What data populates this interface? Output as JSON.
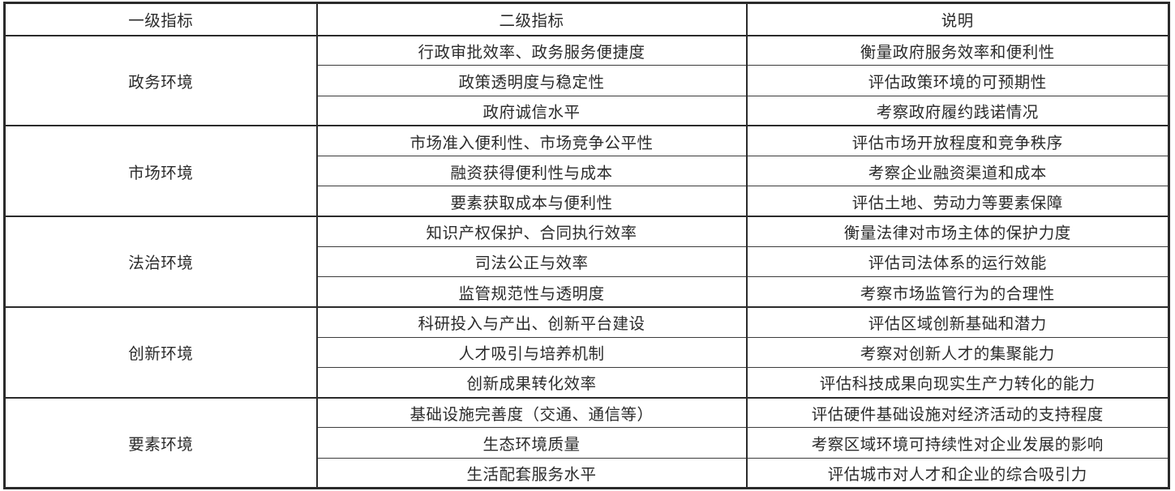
{
  "table": {
    "headers": [
      "一级指标",
      "二级指标",
      "说明"
    ],
    "groups": [
      {
        "level1": "政务环境",
        "rows": [
          {
            "indicator": "行政审批效率、政务服务便捷度",
            "description": "衡量政府服务效率和便利性"
          },
          {
            "indicator": "政策透明度与稳定性",
            "description": "评估政策环境的可预期性"
          },
          {
            "indicator": "政府诚信水平",
            "description": "考察政府履约践诺情况"
          }
        ]
      },
      {
        "level1": "市场环境",
        "rows": [
          {
            "indicator": "市场准入便利性、市场竞争公平性",
            "description": "评估市场开放程度和竞争秩序"
          },
          {
            "indicator": "融资获得便利性与成本",
            "description": "考察企业融资渠道和成本"
          },
          {
            "indicator": "要素获取成本与便利性",
            "description": "评估土地、劳动力等要素保障"
          }
        ]
      },
      {
        "level1": "法治环境",
        "rows": [
          {
            "indicator": "知识产权保护、合同执行效率",
            "description": "衡量法律对市场主体的保护力度"
          },
          {
            "indicator": "司法公正与效率",
            "description": "评估司法体系的运行效能"
          },
          {
            "indicator": "监管规范性与透明度",
            "description": "考察市场监管行为的合理性"
          }
        ]
      },
      {
        "level1": "创新环境",
        "rows": [
          {
            "indicator": "科研投入与产出、创新平台建设",
            "description": "评估区域创新基础和潜力"
          },
          {
            "indicator": "人才吸引与培养机制",
            "description": "考察对创新人才的集聚能力"
          },
          {
            "indicator": "创新成果转化效率",
            "description": "评估科技成果向现实生产力转化的能力"
          }
        ]
      },
      {
        "level1": "要素环境",
        "rows": [
          {
            "indicator": "基础设施完善度（交通、通信等）",
            "description": "评估硬件基础设施对经济活动的支持程度"
          },
          {
            "indicator": "生态环境质量",
            "description": "考察区域环境可持续性对企业发展的影响"
          },
          {
            "indicator": "生活配套服务水平",
            "description": "评估城市对人才和企业的综合吸引力"
          }
        ]
      }
    ]
  }
}
